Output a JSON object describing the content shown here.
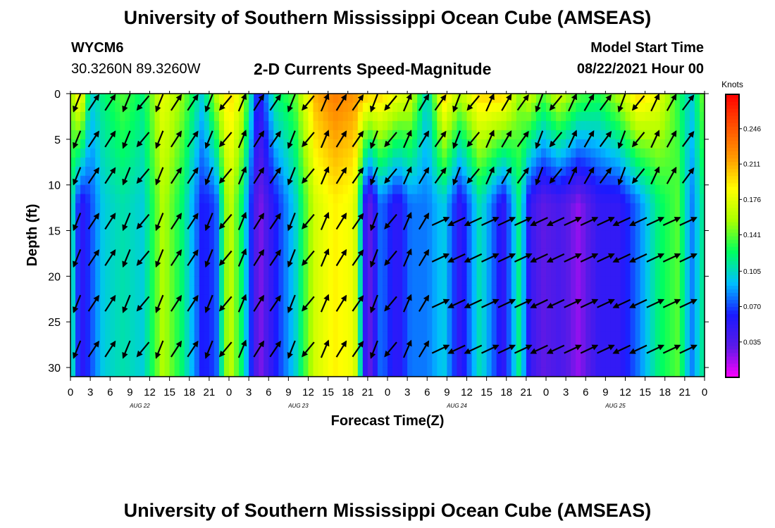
{
  "header": {
    "title_top": "University of Southern Mississippi Ocean Cube (AMSEAS)",
    "title_bottom": "University of Southern Mississippi Ocean Cube (AMSEAS)",
    "station_id": "WYCM6",
    "station_coords": "30.3260N  89.3260W",
    "plot_title": "2-D Currents Speed-Magnitude",
    "model_label": "Model Start Time",
    "model_time": "08/22/2021 Hour 00"
  },
  "chart_data": {
    "type": "heatmap",
    "title": "2-D Currents Speed-Magnitude",
    "xlabel": "Forecast Time(Z)",
    "ylabel": "Depth (ft)",
    "x_range_hours": [
      0,
      96
    ],
    "x_tick_labels": [
      "0",
      "3",
      "6",
      "9",
      "12",
      "15",
      "18",
      "21",
      "0",
      "3",
      "6",
      "9",
      "12",
      "15",
      "18",
      "21",
      "0",
      "3",
      "6",
      "9",
      "12",
      "15",
      "18",
      "21",
      "0",
      "3",
      "6",
      "9",
      "12",
      "15",
      "18",
      "21",
      "0"
    ],
    "date_labels": [
      {
        "hour": 10.5,
        "label": "AUG 22"
      },
      {
        "hour": 34.5,
        "label": "AUG 23"
      },
      {
        "hour": 58.5,
        "label": "AUG 24"
      },
      {
        "hour": 82.5,
        "label": "AUG 25"
      }
    ],
    "y_range_ft": [
      0,
      31
    ],
    "y_ticks": [
      0,
      5,
      10,
      15,
      20,
      25,
      30
    ],
    "colorbar": {
      "unit": "Knots",
      "range": [
        0.0,
        0.28
      ],
      "ticks": [
        0.035,
        0.07,
        0.105,
        0.141,
        0.176,
        0.211,
        0.246
      ],
      "tick_labels": [
        "0.035",
        "0.070",
        "0.105",
        "0.141",
        "0.176",
        "0.211",
        "0.246"
      ],
      "colors": [
        "#ff00ff",
        "#5a1ae6",
        "#1a1aff",
        "#00bfff",
        "#00ff60",
        "#aaff00",
        "#ffff00",
        "#ff9900",
        "#ff5000",
        "#ff0000"
      ]
    },
    "speed_profile_knots": [
      {
        "hour": 0,
        "surface": 0.15,
        "bottom": 0.12
      },
      {
        "hour": 1.5,
        "surface": 0.2,
        "bottom": 0.05
      },
      {
        "hour": 3,
        "surface": 0.1,
        "bottom": 0.07
      },
      {
        "hour": 5,
        "surface": 0.12,
        "bottom": 0.1
      },
      {
        "hour": 8,
        "surface": 0.14,
        "bottom": 0.11
      },
      {
        "hour": 11,
        "surface": 0.12,
        "bottom": 0.1
      },
      {
        "hour": 14,
        "surface": 0.18,
        "bottom": 0.16
      },
      {
        "hour": 17,
        "surface": 0.15,
        "bottom": 0.12
      },
      {
        "hour": 20,
        "surface": 0.1,
        "bottom": 0.06
      },
      {
        "hour": 22,
        "surface": 0.16,
        "bottom": 0.07
      },
      {
        "hour": 24,
        "surface": 0.2,
        "bottom": 0.17
      },
      {
        "hour": 26,
        "surface": 0.17,
        "bottom": 0.12
      },
      {
        "hour": 28.5,
        "surface": 0.05,
        "bottom": 0.02
      },
      {
        "hour": 31,
        "surface": 0.12,
        "bottom": 0.06
      },
      {
        "hour": 34,
        "surface": 0.14,
        "bottom": 0.1
      },
      {
        "hour": 37,
        "surface": 0.21,
        "bottom": 0.17
      },
      {
        "hour": 40,
        "surface": 0.23,
        "bottom": 0.19
      },
      {
        "hour": 43,
        "surface": 0.22,
        "bottom": 0.18
      },
      {
        "hour": 45,
        "surface": 0.2,
        "bottom": 0.02
      },
      {
        "hour": 47,
        "surface": 0.2,
        "bottom": 0.08
      },
      {
        "hour": 49.5,
        "surface": 0.18,
        "bottom": 0.05
      },
      {
        "hour": 51.5,
        "surface": 0.17,
        "bottom": 0.08
      },
      {
        "hour": 54,
        "surface": 0.1,
        "bottom": 0.08
      },
      {
        "hour": 56.5,
        "surface": 0.2,
        "bottom": 0.1
      },
      {
        "hour": 59,
        "surface": 0.16,
        "bottom": 0.05
      },
      {
        "hour": 62,
        "surface": 0.2,
        "bottom": 0.11
      },
      {
        "hour": 65.5,
        "surface": 0.2,
        "bottom": 0.05
      },
      {
        "hour": 68,
        "surface": 0.15,
        "bottom": 0.12
      },
      {
        "hour": 69.5,
        "surface": 0.17,
        "bottom": 0.05
      },
      {
        "hour": 71.5,
        "surface": 0.14,
        "bottom": 0.03
      },
      {
        "hour": 74,
        "surface": 0.17,
        "bottom": 0.04
      },
      {
        "hour": 77,
        "surface": 0.14,
        "bottom": 0.02
      },
      {
        "hour": 80,
        "surface": 0.13,
        "bottom": 0.05
      },
      {
        "hour": 83,
        "surface": 0.16,
        "bottom": 0.05
      },
      {
        "hour": 86,
        "surface": 0.2,
        "bottom": 0.08
      },
      {
        "hour": 89,
        "surface": 0.18,
        "bottom": 0.12
      },
      {
        "hour": 92,
        "surface": 0.13,
        "bottom": 0.14
      },
      {
        "hour": 94,
        "surface": 0.1,
        "bottom": 0.08
      },
      {
        "hour": 96,
        "surface": 0.15,
        "bottom": 0.12
      }
    ],
    "vector_grid": {
      "hour_step": 2.5,
      "depths_ft": [
        1,
        5,
        9,
        14,
        18,
        23,
        28
      ]
    }
  }
}
